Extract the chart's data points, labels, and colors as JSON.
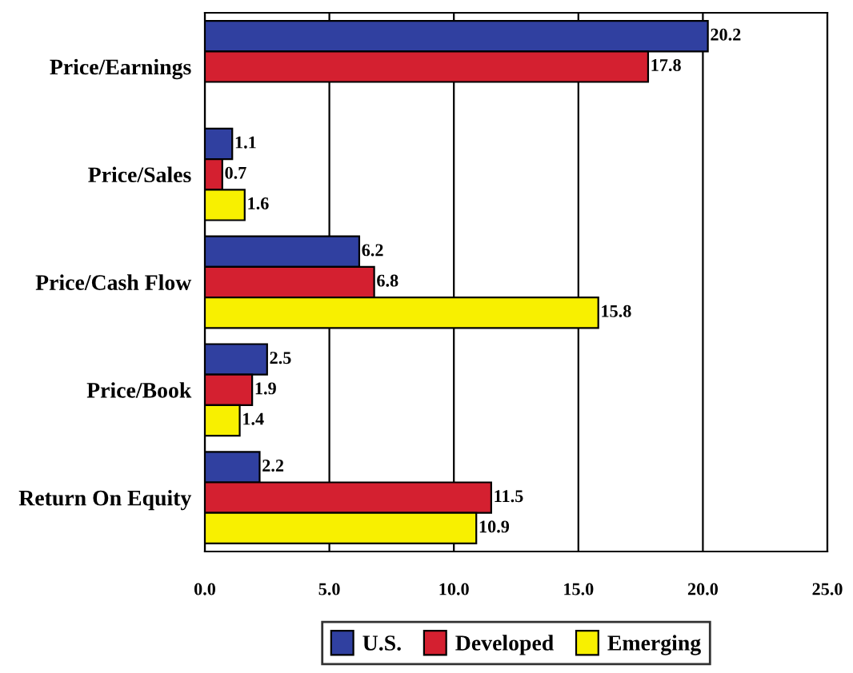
{
  "chart_data": {
    "type": "bar",
    "orientation": "horizontal",
    "categories": [
      "Price/Earnings",
      "Price/Sales",
      "Price/Cash Flow",
      "Price/Book",
      "Return On Equity"
    ],
    "series": [
      {
        "name": "U.S.",
        "color": "#3040a0",
        "values": [
          20.2,
          1.1,
          6.2,
          2.5,
          2.2
        ]
      },
      {
        "name": "Developed",
        "color": "#d42030",
        "values": [
          17.8,
          0.7,
          6.8,
          1.9,
          11.5
        ]
      },
      {
        "name": "Emerging",
        "color": "#f8f000",
        "values": [
          null,
          1.6,
          15.8,
          1.4,
          10.9
        ]
      }
    ],
    "xlim": [
      0,
      25
    ],
    "xticks": [
      {
        "value": 0,
        "label": "0.0"
      },
      {
        "value": 5,
        "label": "5.0"
      },
      {
        "value": 10,
        "label": "10.0"
      },
      {
        "value": 15,
        "label": "15.0"
      },
      {
        "value": 20,
        "label": "20.0"
      },
      {
        "value": 25,
        "label": "25.0"
      }
    ],
    "grid": "x",
    "legend": "bottom",
    "data_labels": true
  }
}
